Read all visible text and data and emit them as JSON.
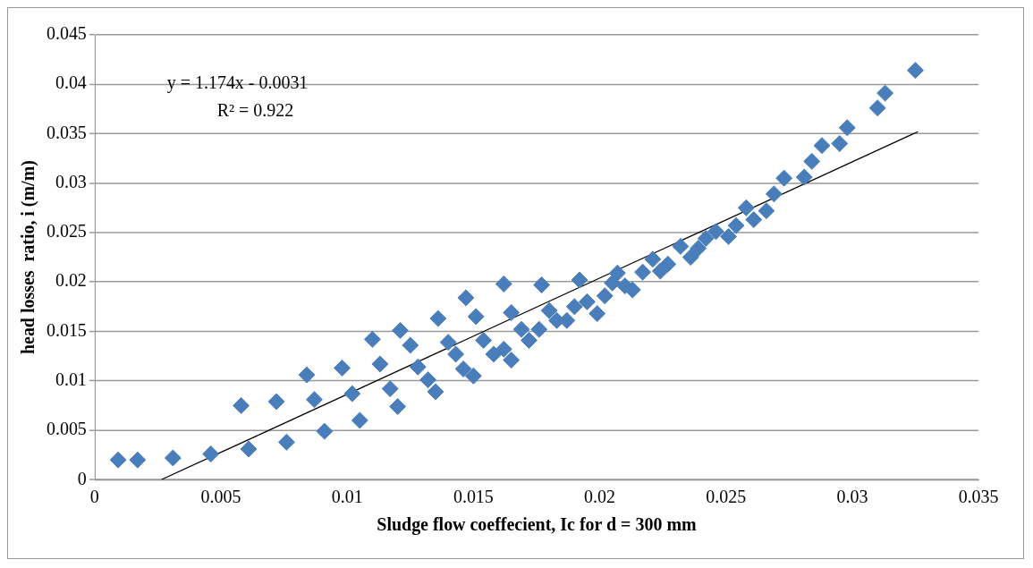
{
  "chart_data": {
    "type": "scatter",
    "xlabel": "Sludge flow coeffecient, Ic for d = 300 mm",
    "ylabel": "head losses  ratio, i (m/m)",
    "annotations": [
      "y = 1.174x - 0.0031",
      "R² = 0.922"
    ],
    "xlim": [
      0,
      0.035
    ],
    "xticks": [
      0,
      0.005,
      0.01,
      0.015,
      0.02,
      0.025,
      0.03,
      0.035
    ],
    "ylim": [
      0,
      0.045
    ],
    "yticks": [
      0,
      0.005,
      0.01,
      0.015,
      0.02,
      0.025,
      0.03,
      0.035,
      0.04,
      0.045
    ],
    "grid": "y",
    "legend": false,
    "marker": "diamond",
    "series": [
      {
        "color": "#4a7ebb",
        "x": [
          0.00093,
          0.0017,
          0.0031,
          0.0046,
          0.0058,
          0.0061,
          0.0072,
          0.0076,
          0.0084,
          0.0087,
          0.0091,
          0.0098,
          0.0102,
          0.0105,
          0.011,
          0.0113,
          0.0117,
          0.012,
          0.0121,
          0.0125,
          0.0128,
          0.0132,
          0.0135,
          0.0136,
          0.014,
          0.0143,
          0.0146,
          0.0147,
          0.015,
          0.0151,
          0.0154,
          0.0158,
          0.0162,
          0.0162,
          0.0165,
          0.0165,
          0.0169,
          0.0172,
          0.0176,
          0.0177,
          0.018,
          0.0183,
          0.0187,
          0.019,
          0.0192,
          0.0195,
          0.0199,
          0.0202,
          0.0205,
          0.0207,
          0.021,
          0.0213,
          0.0217,
          0.0221,
          0.0224,
          0.0227,
          0.0232,
          0.0236,
          0.0239,
          0.0242,
          0.0246,
          0.0251,
          0.0254,
          0.0258,
          0.0261,
          0.0266,
          0.0269,
          0.0273,
          0.0281,
          0.0284,
          0.0288,
          0.0295,
          0.0298,
          0.031,
          0.0313,
          0.0325
        ],
        "values": [
          0.002,
          0.002,
          0.0022,
          0.0026,
          0.0075,
          0.0031,
          0.0079,
          0.0038,
          0.0106,
          0.0081,
          0.0049,
          0.0113,
          0.0087,
          0.006,
          0.0142,
          0.0117,
          0.0092,
          0.0074,
          0.0151,
          0.0136,
          0.0114,
          0.0101,
          0.0089,
          0.0163,
          0.0139,
          0.0127,
          0.0112,
          0.0184,
          0.0105,
          0.0165,
          0.0141,
          0.0127,
          0.0132,
          0.0198,
          0.0121,
          0.0169,
          0.0152,
          0.0141,
          0.0152,
          0.0197,
          0.0171,
          0.0161,
          0.0161,
          0.0175,
          0.0202,
          0.018,
          0.0168,
          0.0186,
          0.0199,
          0.0209,
          0.0196,
          0.0192,
          0.021,
          0.0223,
          0.0211,
          0.0218,
          0.0236,
          0.0225,
          0.0234,
          0.0244,
          0.0251,
          0.0246,
          0.0257,
          0.0275,
          0.0263,
          0.0272,
          0.0289,
          0.0305,
          0.0306,
          0.0322,
          0.0338,
          0.034,
          0.0356,
          0.0376,
          0.0391,
          0.0414
        ]
      },
      {
        "type": "line",
        "color": "#000000",
        "marker": "none",
        "x": [
          0.00264,
          0.0326
        ],
        "values": [
          0,
          0.0352
        ]
      }
    ]
  }
}
